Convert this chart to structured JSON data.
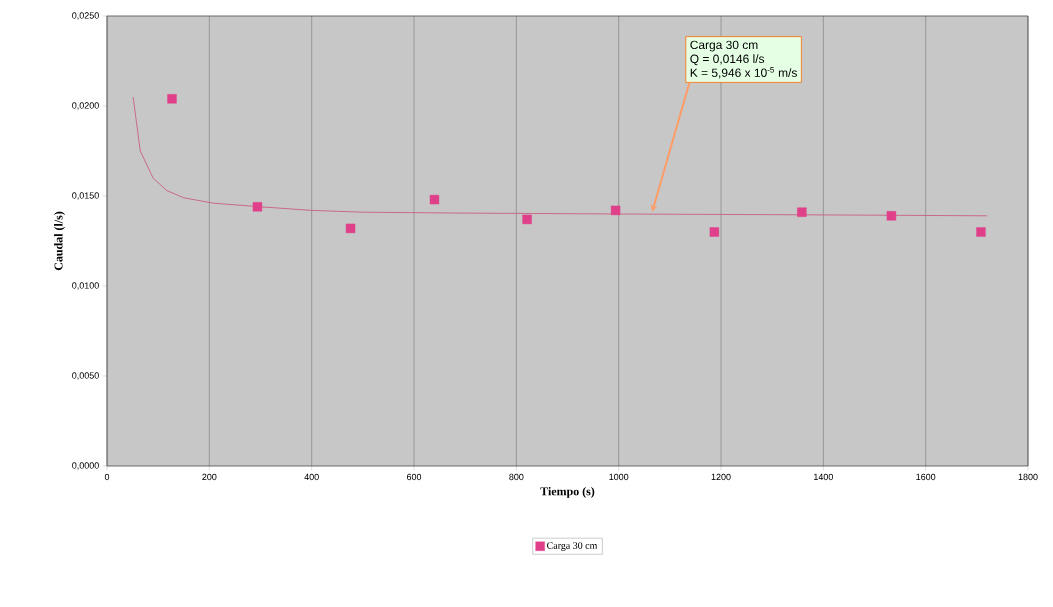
{
  "chart_data": {
    "type": "scatter",
    "xlabel": "Tiempo (s)",
    "ylabel": "Caudal (l/s)",
    "xlim": [
      0,
      1800
    ],
    "xticks": [
      0,
      200,
      400,
      600,
      800,
      1000,
      1200,
      1400,
      1600,
      1800
    ],
    "ylim": [
      0,
      0.025
    ],
    "yticks": [
      {
        "value": 0,
        "label": "0,0000"
      },
      {
        "value": 0.005,
        "label": "0,0050"
      },
      {
        "value": 0.01,
        "label": "0,0100"
      },
      {
        "value": 0.015,
        "label": "0,0150"
      },
      {
        "value": 0.02,
        "label": "0,0200"
      },
      {
        "value": 0.025,
        "label": "0,0250"
      }
    ],
    "grid": "x",
    "legend": "bottom",
    "series": [
      {
        "name": "Carga 30 cm",
        "marker": "square",
        "color": "#e0408a",
        "x": [
          127,
          294,
          476,
          640,
          821,
          994,
          1187,
          1358,
          1533,
          1708
        ],
        "values": [
          0.0204,
          0.0144,
          0.0132,
          0.0148,
          0.0137,
          0.0142,
          0.013,
          0.0141,
          0.0139,
          0.013
        ]
      },
      {
        "type": "line",
        "marker": "none",
        "color": "#c86080",
        "x": [
          51,
          65,
          90,
          117,
          150,
          208,
          300,
          400,
          500,
          700,
          1000,
          1400,
          1720
        ],
        "values": [
          0.0205,
          0.0175,
          0.016,
          0.0153,
          0.0149,
          0.0146,
          0.0144,
          0.0142,
          0.0141,
          0.01405,
          0.014,
          0.01395,
          0.0139
        ]
      }
    ],
    "annotations": [
      "Carga 30 cm",
      "Q = 0,0146 l/s",
      "K = 5,946 x 10$^{-5}$ m/s"
    ]
  }
}
